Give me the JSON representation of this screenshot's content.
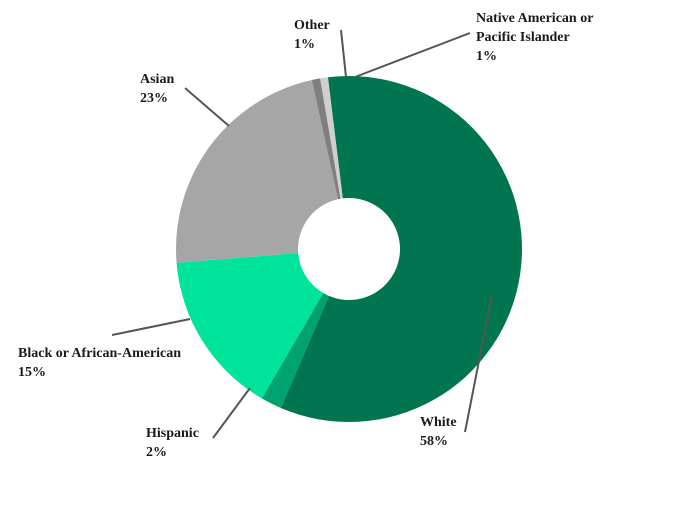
{
  "chart_data": {
    "type": "pie",
    "donut": true,
    "title": "",
    "slices": [
      {
        "label": "White",
        "value_label": "58%",
        "value": 58.39,
        "color": "#00754f",
        "label_lines": [
          "White"
        ]
      },
      {
        "label": "Hispanic",
        "value_label": "2%",
        "value": 1.96,
        "color": "#00a26e",
        "label_lines": [
          "Hispanic"
        ]
      },
      {
        "label": "Black or African-American",
        "value_label": "15%",
        "value": 15.33,
        "color": "#00e39b",
        "label_lines": [
          "Black or African-American"
        ]
      },
      {
        "label": "Asian",
        "value_label": "23%",
        "value": 22.82,
        "color": "#a6a6a6",
        "label_lines": [
          "Asian"
        ]
      },
      {
        "label": "Other",
        "value_label": "1%",
        "value": 0.78,
        "color": "#7f7f7f",
        "label_lines": [
          "Other"
        ]
      },
      {
        "label": "Native American or Pacific Islander",
        "value_label": "1%",
        "value": 0.72,
        "color": "#cfcfcf",
        "label_lines": [
          "Native American or",
          "Pacific Islander"
        ]
      }
    ]
  }
}
